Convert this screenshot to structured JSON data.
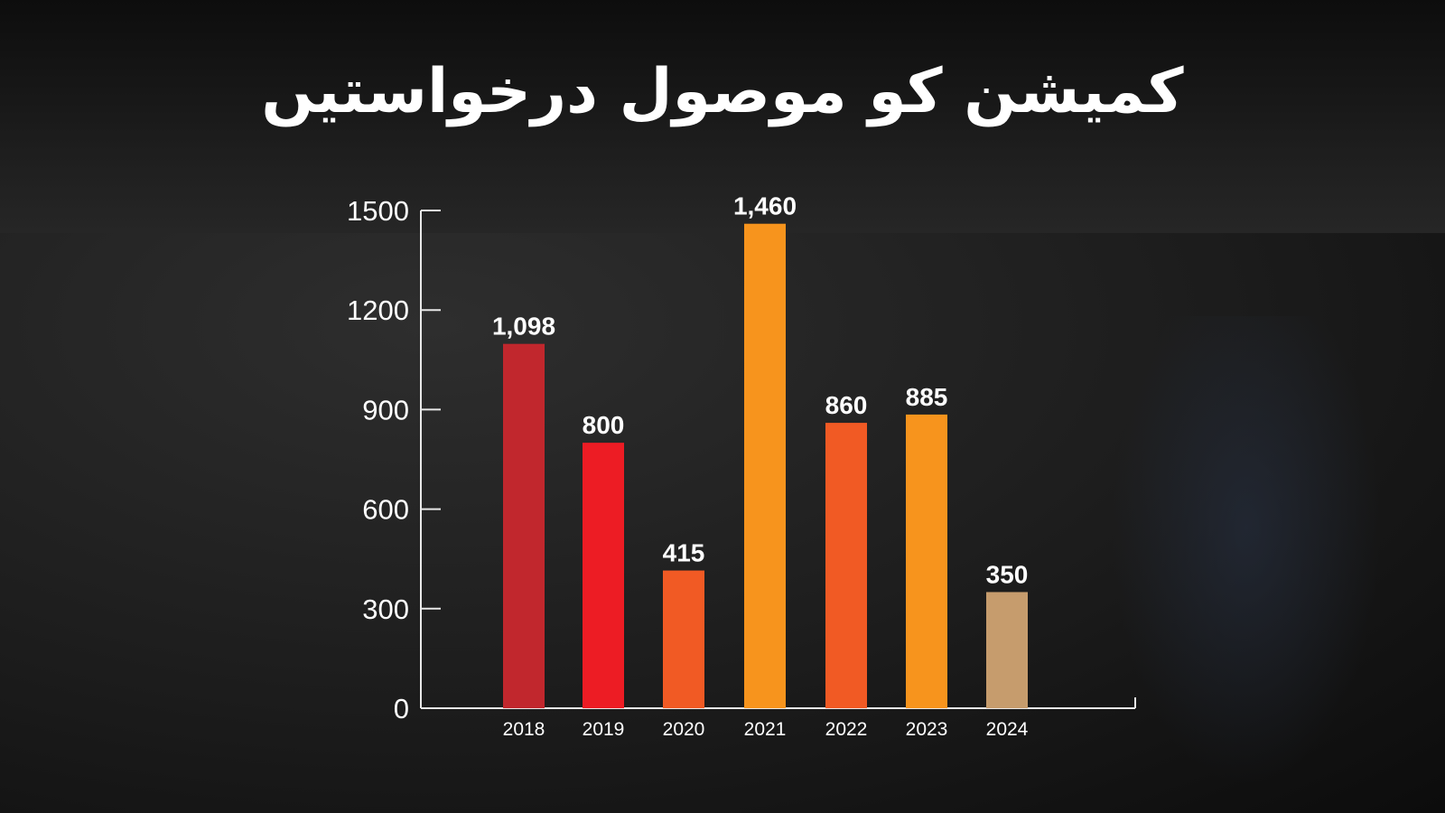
{
  "chart_data": {
    "type": "bar",
    "title": "کمیشن کو موصول درخواستیں",
    "categories": [
      "2018",
      "2019",
      "2020",
      "2021",
      "2022",
      "2023",
      "2024"
    ],
    "values": [
      1098,
      800,
      415,
      1460,
      860,
      885,
      350
    ],
    "data_labels": [
      "1,098",
      "800",
      "415",
      "1,460",
      "860",
      "885",
      "350"
    ],
    "colors": [
      "#c1272d",
      "#ed1c24",
      "#f15a24",
      "#f7941d",
      "#f15a24",
      "#f7941d",
      "#c69c6d"
    ],
    "yticks": [
      "0",
      "300",
      "600",
      "900",
      "1200",
      "1500"
    ],
    "ylim": [
      0,
      1500
    ],
    "grid": false,
    "xlabel": "",
    "ylabel": ""
  }
}
